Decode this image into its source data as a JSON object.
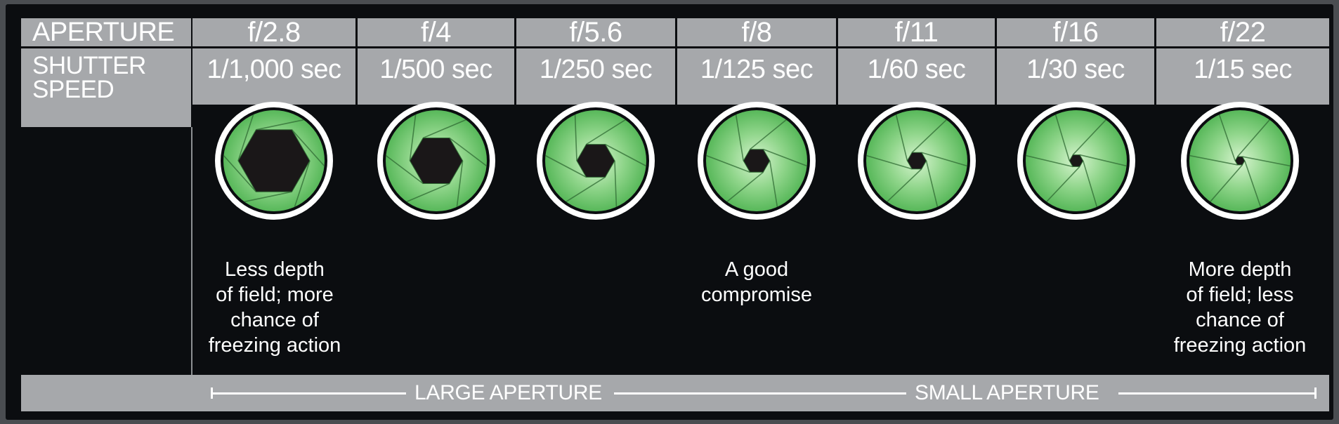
{
  "rows": {
    "aperture_label": "APERTURE",
    "shutter_label": "SHUTTER SPEED"
  },
  "columns": [
    {
      "aperture": "f/2.8",
      "shutter": "1/1,000 sec",
      "opening": 1.0
    },
    {
      "aperture": "f/4",
      "shutter": "1/500 sec",
      "opening": 0.72
    },
    {
      "aperture": "f/5.6",
      "shutter": "1/250 sec",
      "opening": 0.5
    },
    {
      "aperture": "f/8",
      "shutter": "1/125 sec",
      "opening": 0.33
    },
    {
      "aperture": "f/11",
      "shutter": "1/60 sec",
      "opening": 0.22
    },
    {
      "aperture": "f/16",
      "shutter": "1/30 sec",
      "opening": 0.14
    },
    {
      "aperture": "f/22",
      "shutter": "1/15 sec",
      "opening": 0.08
    }
  ],
  "notes": {
    "large": "Less depth\nof field; more\nchance of\nfreezing action",
    "middle": "A good\ncompromise",
    "small": "More depth\nof field; less\nchance of\nfreezing action"
  },
  "scale": {
    "large_label": "LARGE APERTURE",
    "small_label": "SMALL APERTURE"
  },
  "colors": {
    "panel_grey": "#a6a8ab",
    "background": "#0b0d10",
    "iris_green": "#58b85a",
    "iris_center": "#d8f5d0"
  }
}
